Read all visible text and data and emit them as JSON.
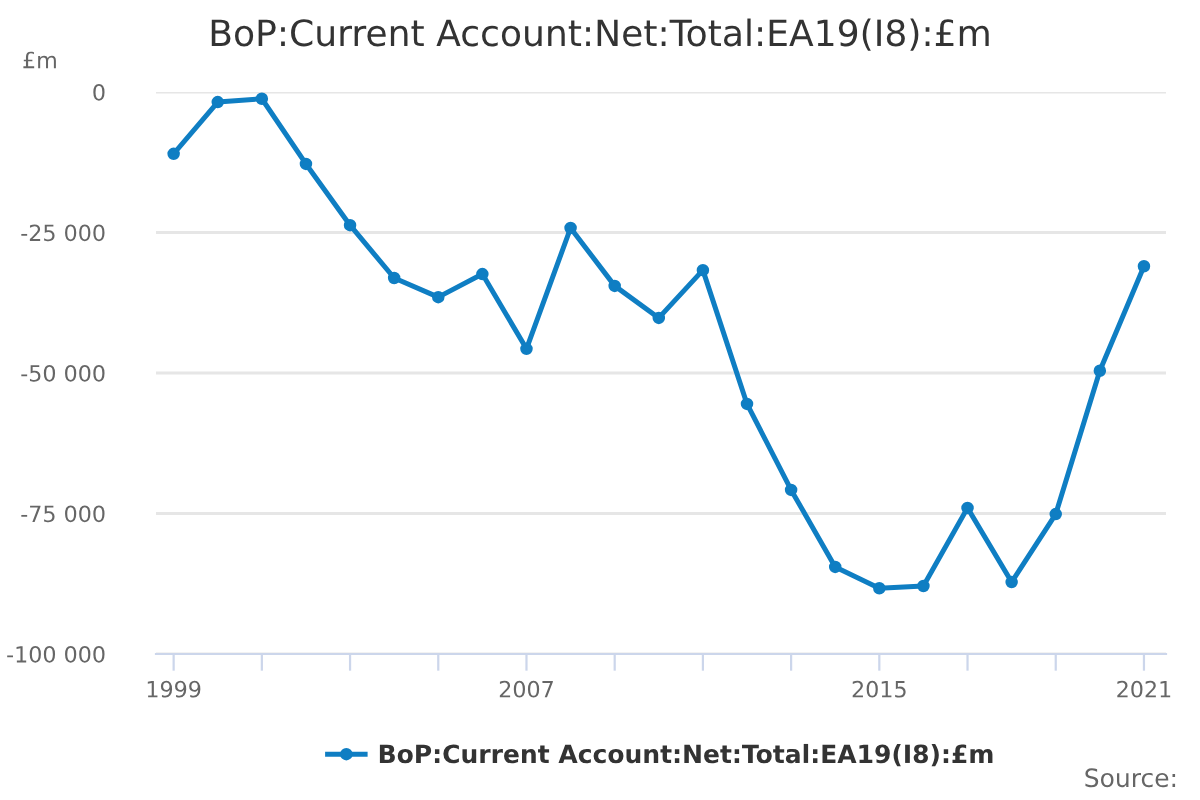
{
  "chart_data": {
    "type": "line",
    "title": "BoP:Current Account:Net:Total:EA19(I8):£m",
    "ylabel": "£m",
    "x": [
      1999,
      2000,
      2001,
      2002,
      2003,
      2004,
      2005,
      2006,
      2007,
      2008,
      2009,
      2010,
      2011,
      2012,
      2013,
      2014,
      2015,
      2016,
      2017,
      2018,
      2019,
      2020,
      2021
    ],
    "series": [
      {
        "name": "BoP:Current Account:Net:Total:EA19(I8):£m",
        "color": "#0f7ec3",
        "values": [
          -11000,
          -1800,
          -1200,
          -12800,
          -23700,
          -33100,
          -36500,
          -32400,
          -45700,
          -24200,
          -34500,
          -40200,
          -31700,
          -55500,
          -70800,
          -84500,
          -88300,
          -87900,
          -74000,
          -87200,
          -75100,
          -49600,
          -31000
        ]
      }
    ],
    "xlim": [
      1998.6,
      2021.5
    ],
    "xticks": [
      1999,
      {
        "value": 2001,
        "label": null
      },
      {
        "value": 2003,
        "label": null
      },
      {
        "value": 2005,
        "label": null
      },
      2007,
      {
        "value": 2009,
        "label": null
      },
      {
        "value": 2011,
        "label": null
      },
      {
        "value": 2013,
        "label": null
      },
      2015,
      {
        "value": 2017,
        "label": null
      },
      {
        "value": 2019,
        "label": null
      },
      2021
    ],
    "ylim": [
      -100000,
      0
    ],
    "yticks": [
      {
        "value": 0,
        "label": "0"
      },
      {
        "value": -25000,
        "label": "-25 000"
      },
      {
        "value": -50000,
        "label": "-50 000"
      },
      {
        "value": -75000,
        "label": "-75 000"
      },
      {
        "value": -100000,
        "label": "-100 000"
      }
    ],
    "grid": "y",
    "legend": "bottom",
    "marker": "circle",
    "line_style": "solid",
    "annotations": [
      "Source:"
    ]
  }
}
